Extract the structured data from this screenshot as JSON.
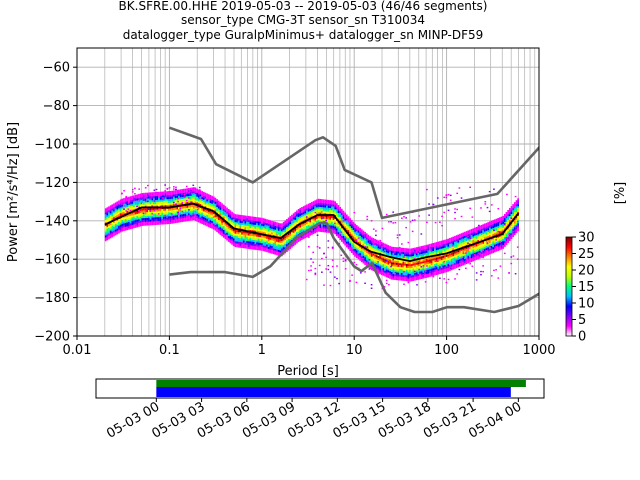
{
  "title_lines": [
    "BK.SFRE.00.HHE   2019-05-03 -- 2019-05-03  (46/46 segments)",
    "sensor_type CMG-3T sensor_sn T310034",
    "datalogger_type GuralpMinimus+ datalogger_sn MINP-DF59"
  ],
  "chart_data": {
    "type": "heatmap",
    "xlabel": "Period [s]",
    "ylabel": "Power [m²/s⁴/Hz] [dB]",
    "x_scale": "log",
    "xlim": [
      0.01,
      1000
    ],
    "ylim": [
      -200,
      -50
    ],
    "grid": true,
    "x_ticks": [
      {
        "value": 0.01,
        "label": "0.01"
      },
      {
        "value": 0.1,
        "label": "0.1"
      },
      {
        "value": 1,
        "label": "1"
      },
      {
        "value": 10,
        "label": "10"
      },
      {
        "value": 100,
        "label": "100"
      },
      {
        "value": 1000,
        "label": "1000"
      }
    ],
    "y_ticks": [
      {
        "value": -60,
        "label": "−60"
      },
      {
        "value": -80,
        "label": "−80"
      },
      {
        "value": -100,
        "label": "−100"
      },
      {
        "value": -120,
        "label": "−120"
      },
      {
        "value": -140,
        "label": "−140"
      },
      {
        "value": -160,
        "label": "−160"
      },
      {
        "value": -180,
        "label": "−180"
      },
      {
        "value": -200,
        "label": "−200"
      }
    ],
    "noise_model_high": {
      "name": "",
      "color": "#666666",
      "x": [
        0.1,
        0.22,
        0.32,
        0.8,
        3.8,
        4.6,
        6.3,
        7.9,
        15.4,
        20,
        354.8,
        10000
      ],
      "y": [
        -91.5,
        -97.4,
        -110.5,
        -120,
        -98,
        -96.5,
        -101,
        -113.5,
        -120,
        -138.5,
        -126,
        -48.5
      ]
    },
    "noise_model_low": {
      "name": "",
      "color": "#666666",
      "x": [
        0.1,
        0.17,
        0.4,
        0.8,
        1.24,
        2.4,
        4.3,
        5,
        6,
        10,
        12,
        15.6,
        21.9,
        31.6,
        45,
        70,
        101,
        154,
        328,
        600,
        1000
      ],
      "y": [
        -168,
        -166.7,
        -166.7,
        -169.2,
        -163.7,
        -148.6,
        -141.1,
        -141.1,
        -149,
        -163.8,
        -166.2,
        -162.1,
        -177.5,
        -185,
        -187.5,
        -187.5,
        -185,
        -185,
        -187.5,
        -184.4,
        -178
      ]
    },
    "mean_curve": {
      "name": "",
      "color": "#000000",
      "x": [
        0.02,
        0.03,
        0.05,
        0.1,
        0.18,
        0.3,
        0.5,
        1,
        1.6,
        2.5,
        4,
        6,
        10,
        15,
        25,
        40,
        60,
        100,
        200,
        400,
        600
      ],
      "y": [
        -142,
        -138,
        -133,
        -133,
        -131,
        -135,
        -144,
        -147,
        -149,
        -142,
        -137,
        -137,
        -151,
        -156,
        -159,
        -161,
        -159,
        -157,
        -152,
        -147,
        -136
      ]
    },
    "psd_density": {
      "peak": [
        {
          "period": 0.02,
          "power": -142
        },
        {
          "period": 0.03,
          "power": -137
        },
        {
          "period": 0.05,
          "power": -134
        },
        {
          "period": 0.1,
          "power": -133
        },
        {
          "period": 0.18,
          "power": -131
        },
        {
          "period": 0.3,
          "power": -136
        },
        {
          "period": 0.5,
          "power": -145
        },
        {
          "period": 1,
          "power": -147
        },
        {
          "period": 1.6,
          "power": -150
        },
        {
          "period": 2.5,
          "power": -142
        },
        {
          "period": 4,
          "power": -137
        },
        {
          "period": 6,
          "power": -138
        },
        {
          "period": 10,
          "power": -150
        },
        {
          "period": 15,
          "power": -157
        },
        {
          "period": 25,
          "power": -162
        },
        {
          "period": 40,
          "power": -163
        },
        {
          "period": 60,
          "power": -161
        },
        {
          "period": 100,
          "power": -158
        },
        {
          "period": 200,
          "power": -152
        },
        {
          "period": 400,
          "power": -146
        },
        {
          "period": 600,
          "power": -136
        }
      ],
      "scatter_regions": [
        {
          "period_range": [
            0.03,
            0.22
          ],
          "power_range": [
            -138,
            -121
          ]
        },
        {
          "period_range": [
            3,
            60
          ],
          "power_range": [
            -175,
            -135
          ]
        },
        {
          "period_range": [
            60,
            600
          ],
          "power_range": [
            -172,
            -122
          ]
        }
      ]
    },
    "colorbar": {
      "label": "[%]",
      "range": [
        0,
        30
      ],
      "ticks": [
        {
          "value": 0,
          "label": "0"
        },
        {
          "value": 5,
          "label": "5"
        },
        {
          "value": 10,
          "label": "10"
        },
        {
          "value": 15,
          "label": "15"
        },
        {
          "value": 20,
          "label": "20"
        },
        {
          "value": 25,
          "label": "25"
        },
        {
          "value": 30,
          "label": "30"
        }
      ],
      "colors": [
        "#ffffff",
        "#ff00ff",
        "#7f00ff",
        "#0000ff",
        "#00bfff",
        "#00ff7f",
        "#bfff00",
        "#ffff00",
        "#ff7f00",
        "#ff0000",
        "#7f0000"
      ]
    },
    "coverage": {
      "time_labels": [
        "05-03 00",
        "05-03 03",
        "05-03 06",
        "05-03 09",
        "05-03 12",
        "05-03 15",
        "05-03 18",
        "05-03 21",
        "05-04 00"
      ],
      "time_range_hours": [
        -4,
        25.7
      ],
      "time_ticks_hours": [
        0,
        3,
        6,
        9,
        12,
        15,
        18,
        21,
        24
      ],
      "data_available": {
        "start_hour": 0,
        "end_hour": 24.5,
        "color": "#008000"
      },
      "psd_used": {
        "start_hour": 0,
        "end_hour": 23.5,
        "color": "#0000ff"
      }
    }
  }
}
